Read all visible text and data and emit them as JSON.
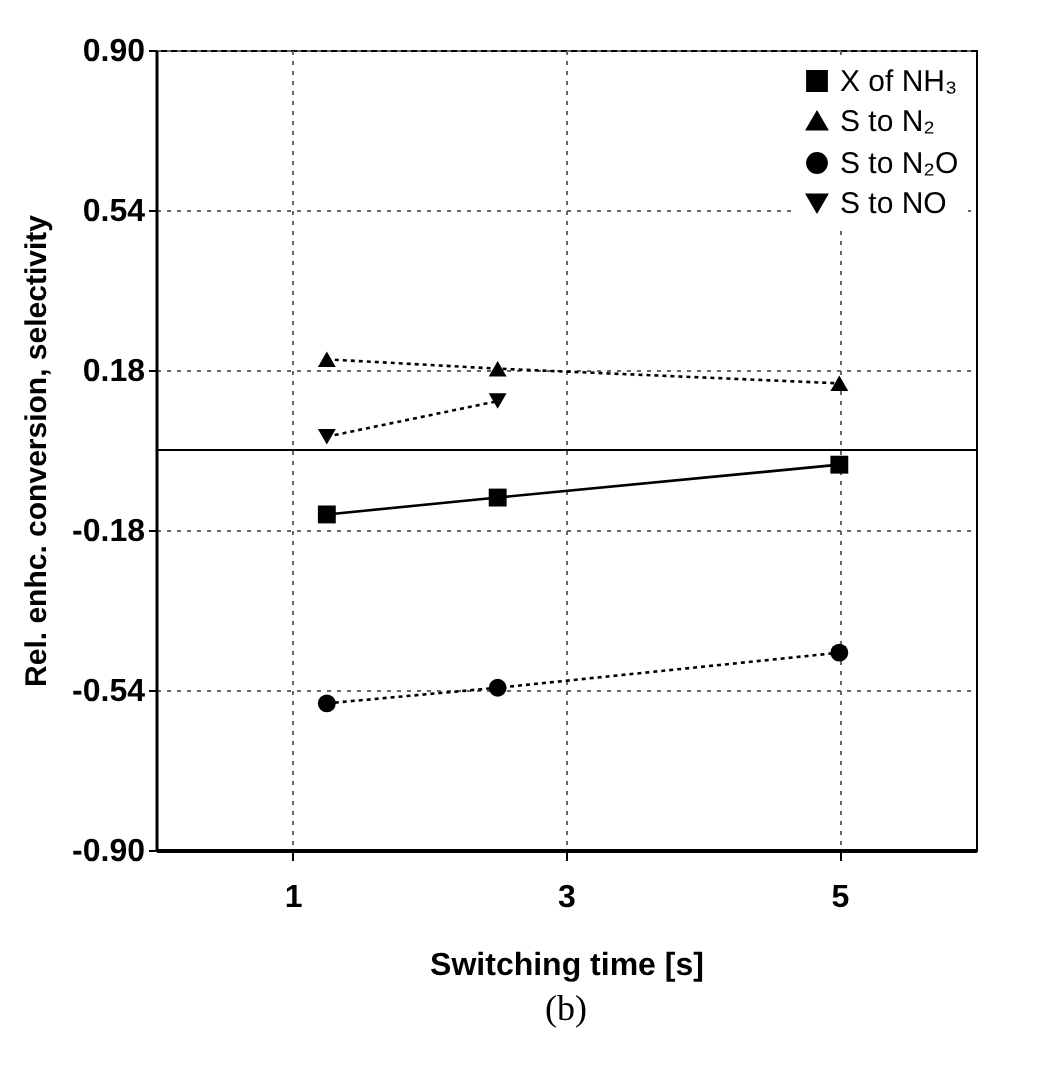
{
  "chart_data": {
    "type": "line",
    "xlabel": "Switching time [s]",
    "ylabel": "Rel. enhc. conversion, selectivity",
    "annotations": [
      "(b)"
    ],
    "x": [
      1.25,
      2.5,
      5
    ],
    "xlim": [
      0,
      6
    ],
    "xticks": [
      1,
      3,
      5
    ],
    "ylim": [
      -0.9,
      0.9
    ],
    "yticks": [
      {
        "value": -0.9,
        "label": "-0.90"
      },
      {
        "value": -0.54,
        "label": "-0.54"
      },
      {
        "value": -0.18,
        "label": "-0.18"
      },
      {
        "value": 0.18,
        "label": "0.18"
      },
      {
        "value": 0.54,
        "label": "0.54"
      },
      {
        "value": 0.9,
        "label": "0.90"
      }
    ],
    "grid": true,
    "legend": "top right",
    "ref_lines": [
      {
        "axis": "y",
        "value": 0,
        "color": "#000000",
        "line_style": "solid"
      }
    ],
    "series": [
      {
        "name": "X of NH₃",
        "color": "#000000",
        "marker": "square",
        "line_style": "solid",
        "values": [
          -0.145,
          -0.107,
          -0.033
        ]
      },
      {
        "name": "S to N₂",
        "color": "#000000",
        "marker": "triangle",
        "line_style": "dotted",
        "values": [
          0.204,
          0.183,
          0.15
        ]
      },
      {
        "name": "S to N₂O",
        "color": "#000000",
        "marker": "circle",
        "line_style": "dotted",
        "values": [
          -0.57,
          -0.535,
          -0.456
        ]
      },
      {
        "name": "S to NO",
        "color": "#000000",
        "marker": "triangle-down",
        "line_style": "dotted",
        "values": [
          0.03,
          0.11,
          null
        ]
      }
    ]
  }
}
